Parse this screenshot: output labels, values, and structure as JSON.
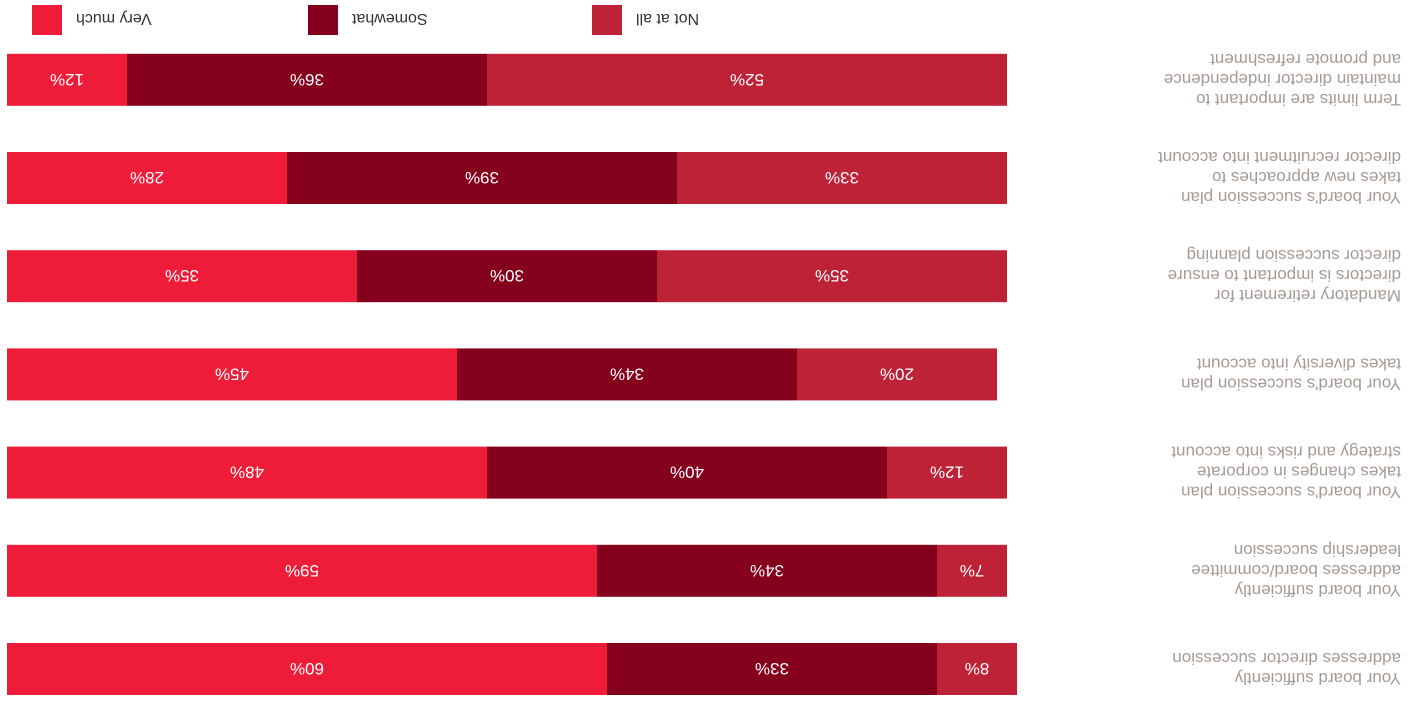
{
  "chart_data": {
    "type": "bar",
    "orientation": "horizontal-stacked-100",
    "categories": [
      "Your board sufficiently\naddresses director succession",
      "Your board sufficiently\naddresses board/committee\nleadership succession",
      "Your board's succession plan\ntakes changes in corporate\nstrategy and risks into account",
      "Your board's succession plan\ntakes diversity into account",
      "Mandatory retirement for\ndirectors is important to ensure\ndirector succession planning",
      "Your board's succession plan\ntakes new approaches to\ndirector recruitment into account",
      "Term limits are important to\nmaintain director independence\nand promote refreshment"
    ],
    "series": [
      {
        "name": "Very much",
        "color": "#ee1c39",
        "values": [
          60,
          59,
          48,
          45,
          35,
          28,
          12
        ]
      },
      {
        "name": "Somewhat",
        "color": "#85001d",
        "values": [
          33,
          34,
          40,
          34,
          30,
          39,
          36
        ]
      },
      {
        "name": "Not at all",
        "color": "#be2237",
        "values": [
          8,
          7,
          12,
          20,
          35,
          33,
          52
        ]
      }
    ],
    "data_label_suffix": "%",
    "xlim": [
      0,
      100
    ],
    "legend_position": "top",
    "grid": false
  }
}
